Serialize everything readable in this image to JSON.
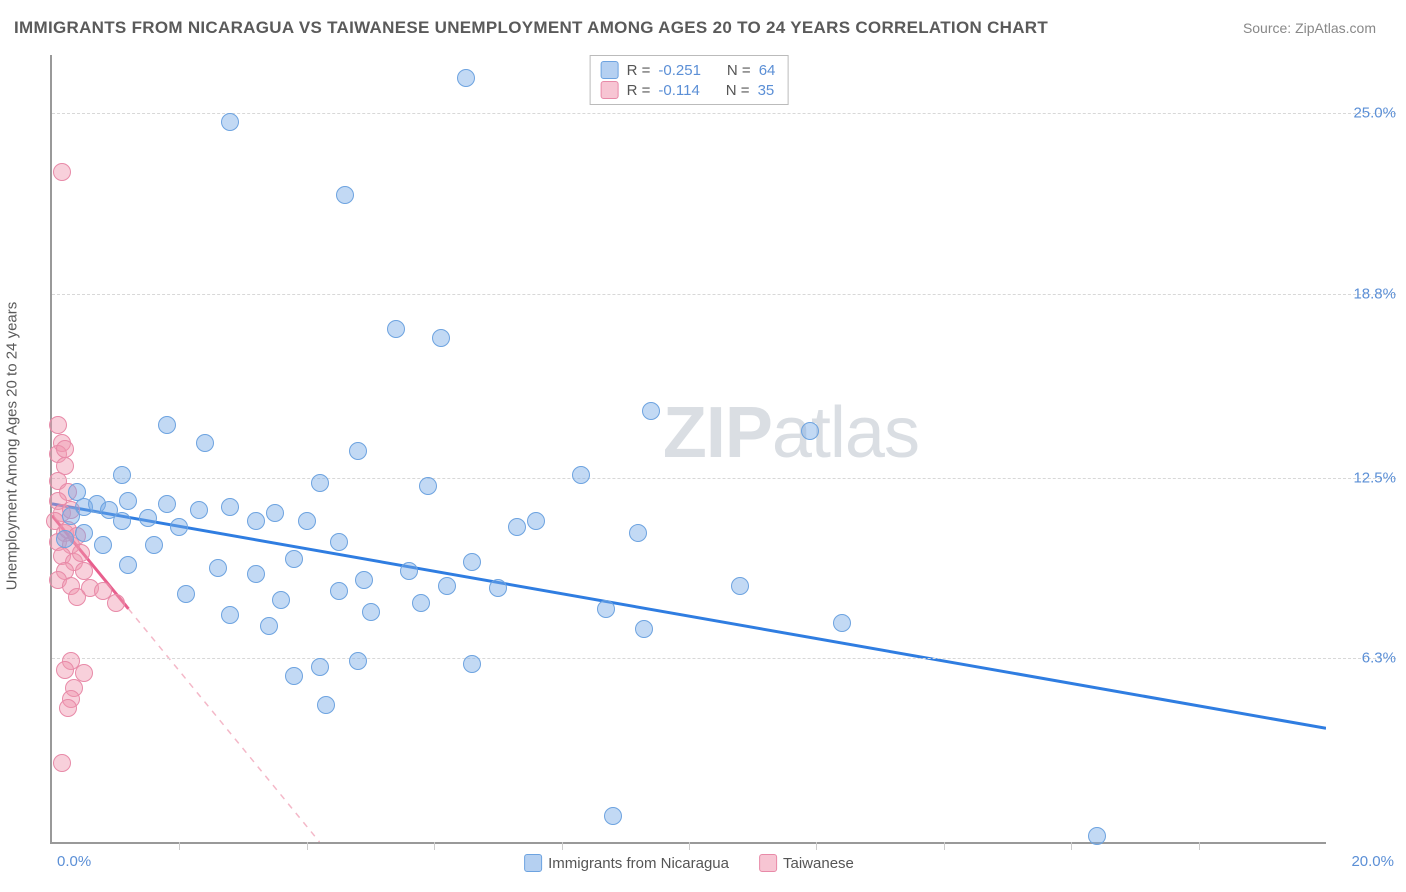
{
  "title": "IMMIGRANTS FROM NICARAGUA VS TAIWANESE UNEMPLOYMENT AMONG AGES 20 TO 24 YEARS CORRELATION CHART",
  "source_label": "Source: ",
  "source_link": "ZipAtlas.com",
  "ylabel": "Unemployment Among Ages 20 to 24 years",
  "watermark_a": "ZIP",
  "watermark_b": "atlas",
  "chart": {
    "type": "scatter",
    "background_color": "#ffffff",
    "grid_color": "#d8d8d8",
    "axis_color": "#999999",
    "marker_radius": 9,
    "xlim": [
      0.0,
      20.0
    ],
    "ylim": [
      0.0,
      27.0
    ],
    "x_tick_min": "0.0%",
    "x_tick_max": "20.0%",
    "y_ticks": [
      {
        "v": 6.3,
        "label": "6.3%"
      },
      {
        "v": 12.5,
        "label": "12.5%"
      },
      {
        "v": 18.8,
        "label": "18.8%"
      },
      {
        "v": 25.0,
        "label": "25.0%"
      }
    ],
    "x_minor_ticks": [
      2,
      4,
      6,
      8,
      10,
      12,
      14,
      16,
      18
    ],
    "legend_top": [
      {
        "swatch": "blue",
        "r_label": "R = ",
        "r": "-0.251",
        "n_label": "N = ",
        "n": "64"
      },
      {
        "swatch": "pink",
        "r_label": "R = ",
        "r": "-0.114",
        "n_label": "N = ",
        "n": "35"
      }
    ],
    "legend_bottom": [
      {
        "swatch": "blue",
        "label": "Immigrants from Nicaragua"
      },
      {
        "swatch": "pink",
        "label": "Taiwanese"
      }
    ],
    "series_blue": {
      "color_fill": "rgba(120,170,230,0.45)",
      "color_stroke": "#6da3e0",
      "trend": {
        "x1": 0.0,
        "y1": 11.6,
        "x2": 20.0,
        "y2": 3.9,
        "stroke": "#2f7de1",
        "width": 3,
        "dash": "none"
      },
      "trend_dashed": null,
      "points": [
        [
          6.5,
          26.2
        ],
        [
          2.8,
          24.7
        ],
        [
          4.6,
          22.2
        ],
        [
          5.4,
          17.6
        ],
        [
          6.1,
          17.3
        ],
        [
          1.8,
          14.3
        ],
        [
          2.4,
          13.7
        ],
        [
          4.8,
          13.4
        ],
        [
          4.2,
          12.3
        ],
        [
          5.9,
          12.2
        ],
        [
          9.4,
          14.8
        ],
        [
          11.9,
          14.1
        ],
        [
          8.3,
          12.6
        ],
        [
          0.5,
          11.5
        ],
        [
          0.7,
          11.6
        ],
        [
          0.9,
          11.4
        ],
        [
          1.2,
          11.7
        ],
        [
          1.8,
          11.6
        ],
        [
          1.1,
          11.0
        ],
        [
          1.5,
          11.1
        ],
        [
          2.3,
          11.4
        ],
        [
          2.0,
          10.8
        ],
        [
          2.8,
          11.5
        ],
        [
          0.5,
          10.6
        ],
        [
          0.8,
          10.2
        ],
        [
          1.6,
          10.2
        ],
        [
          1.2,
          9.5
        ],
        [
          3.5,
          11.3
        ],
        [
          3.2,
          11.0
        ],
        [
          4.0,
          11.0
        ],
        [
          3.8,
          9.7
        ],
        [
          4.5,
          10.3
        ],
        [
          3.2,
          9.2
        ],
        [
          2.6,
          9.4
        ],
        [
          2.1,
          8.5
        ],
        [
          3.6,
          8.3
        ],
        [
          2.8,
          7.8
        ],
        [
          3.4,
          7.4
        ],
        [
          4.5,
          8.6
        ],
        [
          4.9,
          9.0
        ],
        [
          5.6,
          9.3
        ],
        [
          5.0,
          7.9
        ],
        [
          5.8,
          8.2
        ],
        [
          6.2,
          8.8
        ],
        [
          6.6,
          9.6
        ],
        [
          4.2,
          6.0
        ],
        [
          4.8,
          6.2
        ],
        [
          3.8,
          5.7
        ],
        [
          4.3,
          4.7
        ],
        [
          6.6,
          6.1
        ],
        [
          7.0,
          8.7
        ],
        [
          7.6,
          11.0
        ],
        [
          7.3,
          10.8
        ],
        [
          8.7,
          8.0
        ],
        [
          9.2,
          10.6
        ],
        [
          9.3,
          7.3
        ],
        [
          10.8,
          8.8
        ],
        [
          12.4,
          7.5
        ],
        [
          16.4,
          0.2
        ],
        [
          8.8,
          0.9
        ],
        [
          1.1,
          12.6
        ],
        [
          0.4,
          12.0
        ],
        [
          0.3,
          11.2
        ],
        [
          0.2,
          10.4
        ]
      ]
    },
    "series_pink": {
      "color_fill": "rgba(240,150,175,0.45)",
      "color_stroke": "#e88aa8",
      "trend": {
        "x1": 0.0,
        "y1": 11.2,
        "x2": 1.2,
        "y2": 8.0,
        "stroke": "#e85f8d",
        "width": 3,
        "dash": "none"
      },
      "trend_dashed": {
        "x1": 1.2,
        "y1": 8.0,
        "x2": 4.2,
        "y2": 0.0,
        "stroke": "#f4b8c8",
        "width": 1.5,
        "dash": "6,6"
      },
      "points": [
        [
          0.15,
          23.0
        ],
        [
          0.1,
          14.3
        ],
        [
          0.15,
          13.7
        ],
        [
          0.1,
          13.3
        ],
        [
          0.2,
          13.5
        ],
        [
          0.2,
          12.9
        ],
        [
          0.1,
          12.4
        ],
        [
          0.25,
          12.0
        ],
        [
          0.1,
          11.7
        ],
        [
          0.15,
          11.3
        ],
        [
          0.05,
          11.0
        ],
        [
          0.3,
          11.4
        ],
        [
          0.2,
          10.6
        ],
        [
          0.1,
          10.3
        ],
        [
          0.25,
          10.7
        ],
        [
          0.3,
          10.2
        ],
        [
          0.15,
          9.8
        ],
        [
          0.4,
          10.5
        ],
        [
          0.35,
          9.6
        ],
        [
          0.45,
          9.9
        ],
        [
          0.2,
          9.3
        ],
        [
          0.1,
          9.0
        ],
        [
          0.5,
          9.3
        ],
        [
          0.3,
          8.8
        ],
        [
          0.6,
          8.7
        ],
        [
          0.4,
          8.4
        ],
        [
          0.8,
          8.6
        ],
        [
          1.0,
          8.2
        ],
        [
          0.3,
          6.2
        ],
        [
          0.2,
          5.9
        ],
        [
          0.35,
          5.3
        ],
        [
          0.3,
          4.9
        ],
        [
          0.25,
          4.6
        ],
        [
          0.15,
          2.7
        ],
        [
          0.5,
          5.8
        ]
      ]
    }
  }
}
